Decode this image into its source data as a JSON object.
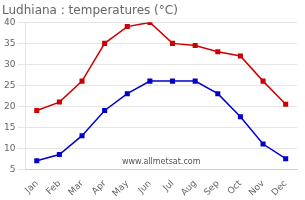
{
  "chart_data": {
    "type": "line",
    "title": "Ludhiana : temperatures (°C)",
    "categories": [
      "Jan",
      "Feb",
      "Mar",
      "Apr",
      "May",
      "Jun",
      "Jul",
      "Aug",
      "Sep",
      "Oct",
      "Nov",
      "Dec"
    ],
    "series": [
      {
        "color": "#cc0000",
        "marker": "square",
        "line_style": "solid",
        "values": [
          19,
          21,
          26,
          35,
          39,
          40,
          35,
          34.5,
          33,
          32,
          26,
          20.5
        ]
      },
      {
        "color": "#0000cc",
        "marker": "square",
        "line_style": "solid",
        "values": [
          7,
          8.5,
          13,
          19,
          23,
          26,
          26,
          26,
          23,
          17.5,
          11,
          7.5
        ]
      }
    ],
    "ylim": [
      5,
      40
    ],
    "yticks": [
      5,
      10,
      15,
      20,
      25,
      30,
      35,
      40
    ],
    "grid": "y",
    "annotations": [
      "www.allmetsat.com"
    ]
  }
}
